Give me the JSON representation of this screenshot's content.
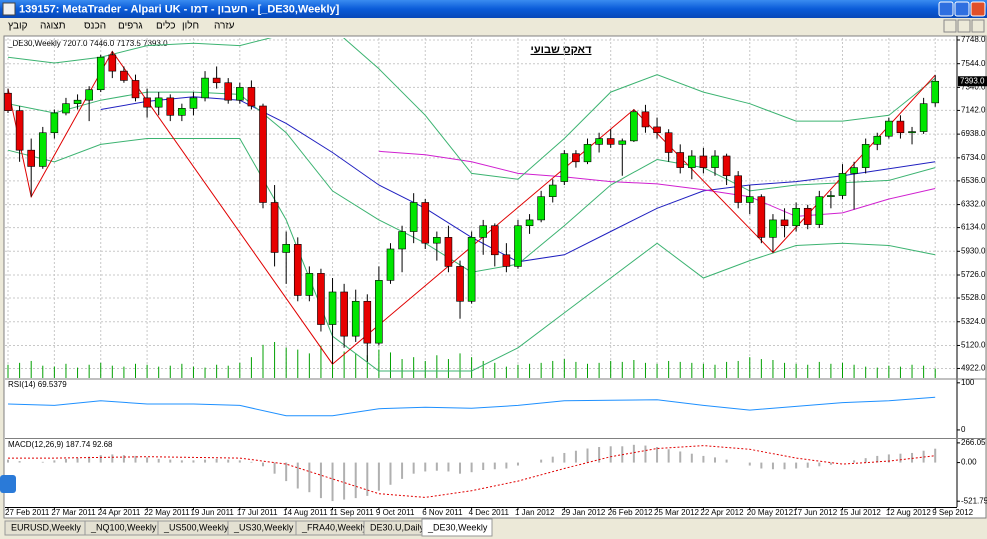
{
  "window": {
    "title": "139157: MetaTrader - Alpari UK - חשבון - דמו - [_DE30,Weekly]",
    "menu": [
      "קובץ",
      "תצוגה",
      "הכנס",
      "גרפים",
      "כלים",
      "חלון",
      "עזרה"
    ],
    "tabs": [
      "EURUSD,Weekly",
      "_NQ100,Weekly",
      "_US500,Weekly",
      "_US30,Weekly",
      "_FRA40,Weekly",
      "DE30.U,Daily",
      "_DE30,Weekly"
    ],
    "active_tab": 6
  },
  "chart_data": [
    {
      "type": "candlestick",
      "title": "דאקס שבועי",
      "header": "_DE30,Weekly  7207.0 7446.0 7173.5 7393.0",
      "up_color": "#00e600",
      "down_color": "#e60000",
      "grid": true,
      "xlim": [
        -0.26,
        81.88
      ],
      "ylim": [
        4840,
        7765
      ],
      "yticks": [
        {
          "value": 7748,
          "label": "7748.0"
        },
        {
          "value": 7544,
          "label": "7544.0"
        },
        {
          "value": 7340,
          "label": "7340.0"
        },
        {
          "value": 7142,
          "label": "7142.0"
        },
        {
          "value": 6938,
          "label": "6938.0"
        },
        {
          "value": 6734,
          "label": "6734.0"
        },
        {
          "value": 6536,
          "label": "6536.0"
        },
        {
          "value": 6332,
          "label": "6332.0"
        },
        {
          "value": 6134,
          "label": "6134.0"
        },
        {
          "value": 5930,
          "label": "5930.0"
        },
        {
          "value": 5726,
          "label": "5726.0"
        },
        {
          "value": 5528,
          "label": "5528.0"
        },
        {
          "value": 5324,
          "label": "5324.0"
        },
        {
          "value": 5120,
          "label": "5120.0"
        },
        {
          "value": 4922,
          "label": "4922.0"
        }
      ],
      "xticks": [
        {
          "value": 0,
          "label": "27 Feb 2011"
        },
        {
          "value": 4,
          "label": "27 Mar 2011"
        },
        {
          "value": 8,
          "label": "24 Apr 2011"
        },
        {
          "value": 12,
          "label": "22 May 2011"
        },
        {
          "value": 16,
          "label": "19 Jun 2011"
        },
        {
          "value": 20,
          "label": "17 Jul 2011"
        },
        {
          "value": 24,
          "label": "14 Aug 2011"
        },
        {
          "value": 28,
          "label": "11 Sep 2011"
        },
        {
          "value": 32,
          "label": "9 Oct 2011"
        },
        {
          "value": 36,
          "label": "6 Nov 2011"
        },
        {
          "value": 40,
          "label": "4 Dec 2011"
        },
        {
          "value": 44,
          "label": "1 Jan 2012"
        },
        {
          "value": 48,
          "label": "29 Jan 2012"
        },
        {
          "value": 52,
          "label": "26 Feb 2012"
        },
        {
          "value": 56,
          "label": "25 Mar 2012"
        },
        {
          "value": 60,
          "label": "22 Apr 2012"
        },
        {
          "value": 64,
          "label": "20 May 2012"
        },
        {
          "value": 68,
          "label": "17 Jun 2012"
        },
        {
          "value": 72,
          "label": "15 Jul 2012"
        },
        {
          "value": 76,
          "label": "12 Aug 2012"
        },
        {
          "value": 80,
          "label": "9 Sep 2012"
        }
      ],
      "price_tag": {
        "value": 7393,
        "label": "7393.0"
      },
      "ohlc": [
        [
          7290,
          7330,
          7120,
          7140
        ],
        [
          7140,
          7180,
          6700,
          6800
        ],
        [
          6800,
          6900,
          6400,
          6660
        ],
        [
          6660,
          7000,
          6640,
          6950
        ],
        [
          6950,
          7150,
          6900,
          7120
        ],
        [
          7120,
          7250,
          7100,
          7200
        ],
        [
          7200,
          7280,
          7150,
          7230
        ],
        [
          7230,
          7350,
          7050,
          7320
        ],
        [
          7320,
          7620,
          7300,
          7600
        ],
        [
          7620,
          7650,
          7420,
          7480
        ],
        [
          7480,
          7520,
          7380,
          7400
        ],
        [
          7400,
          7450,
          7220,
          7250
        ],
        [
          7250,
          7330,
          7080,
          7170
        ],
        [
          7170,
          7300,
          7100,
          7250
        ],
        [
          7250,
          7280,
          7050,
          7100
        ],
        [
          7100,
          7200,
          7050,
          7160
        ],
        [
          7160,
          7300,
          7100,
          7250
        ],
        [
          7250,
          7480,
          7220,
          7420
        ],
        [
          7420,
          7520,
          7330,
          7380
        ],
        [
          7380,
          7420,
          7200,
          7230
        ],
        [
          7230,
          7380,
          7200,
          7340
        ],
        [
          7340,
          7400,
          7150,
          7180
        ],
        [
          7180,
          7200,
          6300,
          6350
        ],
        [
          6350,
          6500,
          5800,
          5920
        ],
        [
          5920,
          6100,
          5650,
          5990
        ],
        [
          5990,
          6050,
          5500,
          5550
        ],
        [
          5550,
          5800,
          5500,
          5740
        ],
        [
          5740,
          5780,
          5240,
          5300
        ],
        [
          5300,
          5700,
          4960,
          5580
        ],
        [
          5580,
          5650,
          5100,
          5200
        ],
        [
          5200,
          5600,
          5150,
          5500
        ],
        [
          5500,
          5560,
          4980,
          5140
        ],
        [
          5140,
          5800,
          5120,
          5680
        ],
        [
          5680,
          6000,
          5650,
          5950
        ],
        [
          5950,
          6150,
          5750,
          6100
        ],
        [
          6100,
          6430,
          6000,
          6350
        ],
        [
          6350,
          6380,
          5950,
          6000
        ],
        [
          6000,
          6100,
          5850,
          6050
        ],
        [
          6050,
          6150,
          5750,
          5800
        ],
        [
          5800,
          5850,
          5350,
          5500
        ],
        [
          5500,
          6100,
          5480,
          6050
        ],
        [
          6050,
          6200,
          5900,
          6150
        ],
        [
          6150,
          6170,
          5800,
          5900
        ],
        [
          5900,
          6000,
          5750,
          5800
        ],
        [
          5800,
          6200,
          5780,
          6150
        ],
        [
          6150,
          6250,
          6080,
          6200
        ],
        [
          6200,
          6450,
          6180,
          6400
        ],
        [
          6400,
          6550,
          6350,
          6500
        ],
        [
          6530,
          6800,
          6500,
          6770
        ],
        [
          6770,
          6800,
          6650,
          6700
        ],
        [
          6700,
          6900,
          6680,
          6850
        ],
        [
          6850,
          6950,
          6780,
          6900
        ],
        [
          6900,
          6980,
          6820,
          6850
        ],
        [
          6850,
          6900,
          6580,
          6880
        ],
        [
          6880,
          7150,
          6870,
          7130
        ],
        [
          7130,
          7190,
          6950,
          7000
        ],
        [
          7000,
          7080,
          6900,
          6950
        ],
        [
          6950,
          6980,
          6700,
          6780
        ],
        [
          6780,
          6850,
          6600,
          6650
        ],
        [
          6650,
          6800,
          6550,
          6750
        ],
        [
          6750,
          6820,
          6600,
          6650
        ],
        [
          6650,
          6800,
          6580,
          6750
        ],
        [
          6750,
          6770,
          6500,
          6580
        ],
        [
          6580,
          6620,
          6300,
          6350
        ],
        [
          6350,
          6500,
          6250,
          6400
        ],
        [
          6400,
          6420,
          6000,
          6050
        ],
        [
          6050,
          6250,
          5920,
          6200
        ],
        [
          6200,
          6300,
          6050,
          6150
        ],
        [
          6150,
          6350,
          6100,
          6300
        ],
        [
          6300,
          6330,
          6120,
          6160
        ],
        [
          6160,
          6450,
          6130,
          6400
        ],
        [
          6400,
          6450,
          6300,
          6410
        ],
        [
          6410,
          6680,
          6380,
          6600
        ],
        [
          6600,
          6700,
          6290,
          6650
        ],
        [
          6650,
          6900,
          6600,
          6850
        ],
        [
          6850,
          6950,
          6800,
          6920
        ],
        [
          6920,
          7080,
          6900,
          7050
        ],
        [
          7050,
          7100,
          6900,
          6950
        ],
        [
          6950,
          7000,
          6850,
          6960
        ],
        [
          6960,
          7250,
          6940,
          7200
        ],
        [
          7207,
          7446,
          7173.5,
          7393
        ]
      ],
      "volume": {
        "color": "#00a000",
        "values": [
          14,
          16,
          18,
          13,
          12,
          15,
          11,
          14,
          16,
          13,
          12,
          15,
          14,
          12,
          13,
          15,
          12,
          11,
          14,
          13,
          16,
          22,
          35,
          38,
          32,
          30,
          26,
          34,
          36,
          28,
          26,
          24,
          30,
          27,
          20,
          22,
          18,
          24,
          20,
          26,
          22,
          18,
          16,
          12,
          14,
          15,
          16,
          18,
          20,
          17,
          15,
          16,
          18,
          17,
          19,
          16,
          15,
          18,
          17,
          16,
          15,
          14,
          17,
          18,
          22,
          20,
          19,
          16,
          15,
          14,
          17,
          15,
          16,
          14,
          12,
          11,
          13,
          12,
          14,
          13,
          10
        ]
      },
      "lines": [
        {
          "color": "#2020c0",
          "x": [
            8,
            12,
            16,
            20,
            24,
            28,
            32,
            36,
            40,
            44,
            48,
            52,
            56,
            60,
            64,
            68,
            72,
            76,
            80
          ],
          "values": [
            7150,
            7220,
            7260,
            7230,
            7030,
            6780,
            6500,
            6300,
            6050,
            5840,
            5900,
            6100,
            6300,
            6450,
            6500,
            6530,
            6580,
            6640,
            6700
          ]
        },
        {
          "color": "#d020d0",
          "x": [
            32,
            36,
            40,
            44,
            48,
            52,
            56,
            60,
            64,
            68,
            72,
            76,
            80
          ],
          "values": [
            6790,
            6760,
            6700,
            6600,
            6570,
            6530,
            6510,
            6460,
            6400,
            6230,
            6260,
            6380,
            6470
          ]
        },
        {
          "color": "#3cb371",
          "x": [
            0,
            4,
            8,
            12,
            16,
            20,
            24,
            28,
            32,
            36,
            40,
            44,
            48,
            52,
            56,
            60,
            64,
            68,
            72,
            76,
            80
          ],
          "values": [
            7600,
            7550,
            7600,
            7700,
            7720,
            7700,
            7800,
            7850,
            7500,
            7100,
            6600,
            6550,
            6900,
            7300,
            7450,
            7300,
            7200,
            7050,
            7050,
            7100,
            7420
          ]
        },
        {
          "color": "#3cb371",
          "x": [
            0,
            4,
            8,
            12,
            16,
            20,
            24,
            28,
            32,
            36,
            40,
            44,
            48,
            52,
            56,
            60,
            64,
            68,
            72,
            76,
            80
          ],
          "values": [
            7200,
            7120,
            7230,
            7300,
            7300,
            7280,
            6950,
            6450,
            6200,
            6000,
            5750,
            5820,
            6150,
            6500,
            6720,
            6650,
            6450,
            6500,
            6520,
            6540,
            6650
          ]
        },
        {
          "color": "#3cb371",
          "x": [
            0,
            4,
            8,
            12,
            16,
            20,
            24,
            28,
            32,
            36,
            40,
            44,
            48,
            52,
            56,
            60,
            64,
            68,
            72,
            76,
            80
          ],
          "values": [
            6800,
            6700,
            6850,
            6900,
            6900,
            6900,
            6200,
            5200,
            4900,
            4900,
            4900,
            5100,
            5400,
            5700,
            6000,
            5700,
            5850,
            5980,
            6000,
            5980,
            5900
          ]
        }
      ],
      "zigzag": {
        "color": "#e00000",
        "x": [
          0,
          2,
          9,
          28,
          54,
          66,
          80
        ],
        "values": [
          7330,
          6400,
          7650,
          4960,
          7150,
          5920,
          7446
        ]
      }
    },
    {
      "type": "line",
      "header": "RSI(14) 69.5379",
      "xlim": [
        -0.26,
        81.88
      ],
      "ylim": [
        -15,
        106
      ],
      "yticks": [
        100,
        0
      ],
      "lines": [
        {
          "color": "#1e90ff",
          "x": [
            0,
            4,
            8,
            12,
            16,
            20,
            24,
            28,
            32,
            36,
            40,
            44,
            48,
            52,
            56,
            60,
            64,
            68,
            72,
            76,
            80
          ],
          "values": [
            55,
            52,
            62,
            55,
            55,
            52,
            30,
            30,
            45,
            48,
            46,
            52,
            62,
            63,
            64,
            52,
            42,
            50,
            58,
            62,
            69.5379
          ]
        }
      ]
    },
    {
      "type": "macd",
      "header": "MACD(12,26,9) 187.74 92.68",
      "xlim": [
        -0.26,
        81.88
      ],
      "ylim": [
        -600,
        305
      ],
      "yticks": [
        {
          "value": 266.05,
          "label": "266.05"
        },
        {
          "value": 0,
          "label": "0.00"
        },
        {
          "value": -521.75,
          "label": "-521.75"
        }
      ],
      "histogram": {
        "color": "#b0b0b0",
        "values": [
          40,
          20,
          0,
          10,
          30,
          50,
          60,
          80,
          100,
          110,
          100,
          90,
          70,
          50,
          40,
          30,
          30,
          40,
          50,
          40,
          30,
          10,
          -50,
          -150,
          -250,
          -350,
          -400,
          -480,
          -520,
          -500,
          -480,
          -450,
          -380,
          -300,
          -220,
          -150,
          -120,
          -110,
          -120,
          -150,
          -130,
          -100,
          -90,
          -80,
          -40,
          0,
          40,
          80,
          130,
          160,
          190,
          210,
          220,
          220,
          240,
          230,
          210,
          180,
          150,
          120,
          90,
          70,
          40,
          0,
          -40,
          -80,
          -90,
          -90,
          -80,
          -70,
          -50,
          -30,
          0,
          30,
          60,
          90,
          110,
          120,
          130,
          160,
          187.74
        ]
      },
      "signal": {
        "color": "#e00000",
        "x": [
          0,
          4,
          8,
          12,
          16,
          20,
          24,
          28,
          32,
          36,
          40,
          44,
          48,
          52,
          56,
          60,
          64,
          68,
          72,
          76,
          80
        ],
        "values": [
          60,
          60,
          70,
          80,
          70,
          60,
          -20,
          -220,
          -420,
          -470,
          -380,
          -250,
          -80,
          80,
          190,
          230,
          180,
          60,
          -20,
          20,
          92.68
        ]
      }
    }
  ]
}
